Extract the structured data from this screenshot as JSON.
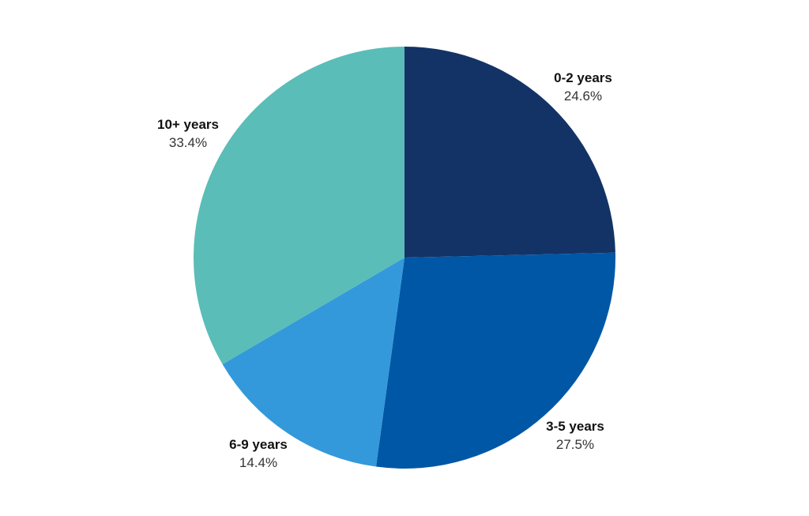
{
  "chart_data": {
    "type": "pie",
    "start_angle_deg": 0,
    "direction": "clockwise",
    "slices": [
      {
        "label": "0-2 years",
        "value": 24.6,
        "display": "24.6%",
        "color": "#133366"
      },
      {
        "label": "3-5 years",
        "value": 27.5,
        "display": "27.5%",
        "color": "#0057A6"
      },
      {
        "label": "6-9 years",
        "value": 14.4,
        "display": "14.4%",
        "color": "#3399DB"
      },
      {
        "label": "10+ years",
        "value": 33.4,
        "display": "33.4%",
        "color": "#5BBDB7"
      }
    ]
  }
}
